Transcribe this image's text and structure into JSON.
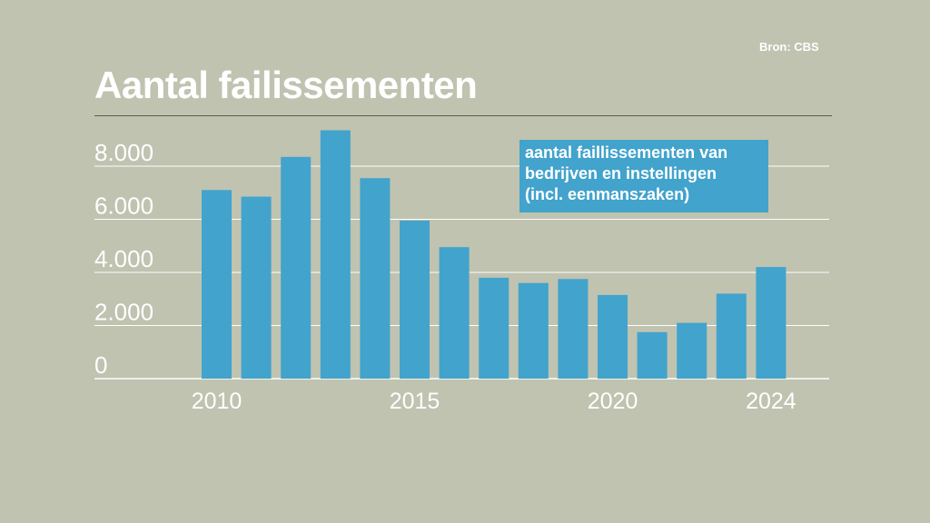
{
  "source": "Bron: CBS",
  "title": "Aantal failissementen",
  "legend_lines": [
    "aantal faillissementen van",
    "bedrijven en instellingen",
    "(incl. eenmanszaken)"
  ],
  "colors": {
    "background": "#bfc3b0",
    "bar": "#42a3cc",
    "grid": "#ffffff",
    "text": "#ffffff"
  },
  "chart_data": {
    "type": "bar",
    "title": "Aantal failissementen",
    "categories": [
      2010,
      2011,
      2012,
      2013,
      2014,
      2015,
      2016,
      2017,
      2018,
      2019,
      2020,
      2021,
      2022,
      2023,
      2024
    ],
    "values": [
      7100,
      6850,
      8350,
      9350,
      7550,
      5950,
      4950,
      3800,
      3600,
      3750,
      3150,
      1750,
      2100,
      3200,
      4200
    ],
    "series_name": "aantal faillissementen van bedrijven en instellingen (incl. eenmanszaken)",
    "ylim": [
      0,
      9000
    ],
    "yticks": [
      0,
      2000,
      4000,
      6000,
      8000
    ],
    "ytick_labels": [
      "0",
      "2.000",
      "4.000",
      "6.000",
      "8.000"
    ],
    "xtick_labels": [
      "2010",
      "2015",
      "2020",
      "2024"
    ],
    "xlabel": "",
    "ylabel": "",
    "grid": true,
    "legend_position": "top-right"
  }
}
